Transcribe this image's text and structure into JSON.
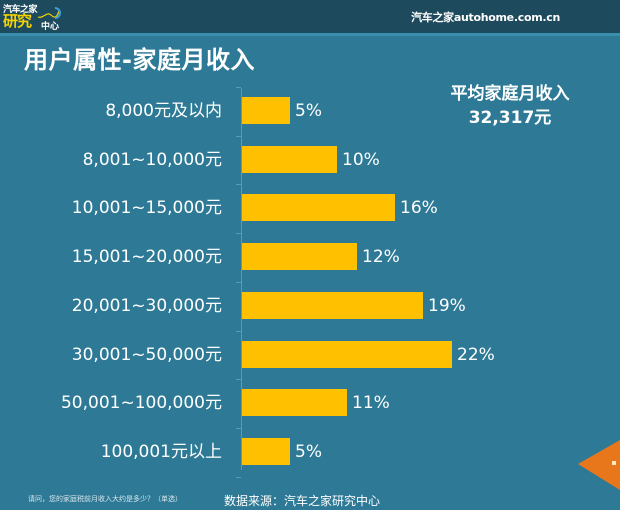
{
  "header": {
    "logo": {
      "top_text": "汽车之家",
      "main_text": "研究",
      "sub_text": "中心"
    },
    "brand_text": "汽车之家autohome.com.cn"
  },
  "page_title": "用户属性-家庭月收入",
  "average": {
    "label": "平均家庭月收入",
    "value": "32,317元"
  },
  "chart_data": {
    "type": "bar",
    "orientation": "horizontal",
    "title": "用户属性-家庭月收入",
    "xlabel": "",
    "ylabel": "",
    "categories": [
      "8,000元及以内",
      "8,001~10,000元",
      "10,001~15,000元",
      "15,001~20,000元",
      "20,001~30,000元",
      "30,001~50,000元",
      "50,001~100,000元",
      "100,001元以上"
    ],
    "values": [
      5,
      10,
      16,
      12,
      19,
      22,
      11,
      5
    ],
    "value_labels": [
      "5%",
      "10%",
      "16%",
      "12%",
      "19%",
      "22%",
      "11%",
      "5%"
    ],
    "unit": "%",
    "grid": false,
    "legend": "none",
    "bar_color": "#ffc000",
    "annotation": "平均家庭月收入 32,317元"
  },
  "footer": {
    "question": "请问，您的家庭税前月收入大约是多少？（单选）",
    "source": "数据来源：汽车之家研究中心"
  },
  "colors": {
    "background": "#2e7a96",
    "header_bar": "#1d4a5c",
    "bar": "#ffc000",
    "nav_arrow": "#e8761a"
  },
  "icons": {
    "nav_arrow": "arrow-left-icon"
  }
}
